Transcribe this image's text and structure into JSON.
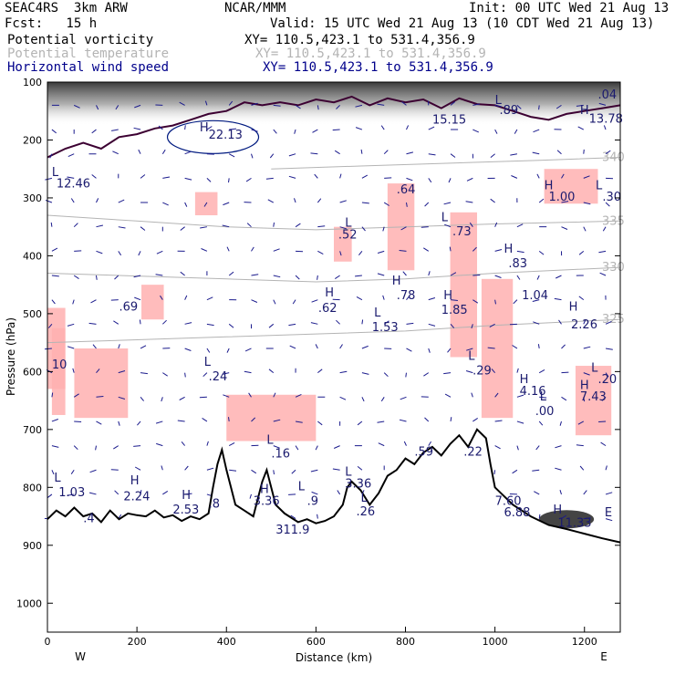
{
  "header": {
    "model": "SEAC4RS  3km ARW",
    "org": "NCAR/MMM",
    "init": "Init: 00 UTC Wed 21 Aug 13",
    "fcst": "Fcst:   15 h",
    "valid": "Valid: 15 UTC Wed 21 Aug 13 (10 CDT Wed 21 Aug 13)"
  },
  "fields": [
    {
      "name": "Potential vorticity",
      "xy": "XY= 110.5,423.1 to 531.4,356.9",
      "color": "#000000"
    },
    {
      "name": "Potential temperature",
      "xy": "XY= 110.5,423.1 to 531.4,356.9",
      "color": "#b4b4b4"
    },
    {
      "name": "Horizontal wind speed",
      "xy": "XY= 110.5,423.1 to 531.4,356.9",
      "color": "#00008b"
    }
  ],
  "colors": {
    "pv": "#ffb0b0",
    "pv_dark": "#3c0032",
    "terrain": "#000000",
    "theta": "#b4b4b4",
    "wind": "#1a1a8c",
    "label": "#1a1a6e"
  },
  "chart_data": {
    "type": "cross-section",
    "xlabel": "Distance (km)",
    "ylabel": "Pressure (hPa)",
    "xlim": [
      0,
      1280
    ],
    "ylim": [
      1050,
      100
    ],
    "x_ticks": [
      0,
      200,
      400,
      600,
      800,
      1000,
      1200
    ],
    "y_ticks": [
      100,
      200,
      300,
      400,
      500,
      600,
      700,
      800,
      900,
      1000
    ],
    "x_end_labels": {
      "left": "W",
      "right": "E"
    },
    "terrain": [
      [
        0,
        855
      ],
      [
        20,
        840
      ],
      [
        40,
        850
      ],
      [
        60,
        835
      ],
      [
        80,
        850
      ],
      [
        100,
        845
      ],
      [
        120,
        860
      ],
      [
        140,
        840
      ],
      [
        160,
        855
      ],
      [
        180,
        845
      ],
      [
        200,
        848
      ],
      [
        220,
        850
      ],
      [
        240,
        840
      ],
      [
        260,
        852
      ],
      [
        280,
        848
      ],
      [
        300,
        858
      ],
      [
        320,
        850
      ],
      [
        340,
        855
      ],
      [
        360,
        845
      ],
      [
        370,
        800
      ],
      [
        380,
        760
      ],
      [
        390,
        735
      ],
      [
        400,
        770
      ],
      [
        410,
        800
      ],
      [
        420,
        830
      ],
      [
        440,
        840
      ],
      [
        460,
        850
      ],
      [
        470,
        820
      ],
      [
        480,
        790
      ],
      [
        490,
        770
      ],
      [
        500,
        800
      ],
      [
        510,
        830
      ],
      [
        530,
        845
      ],
      [
        560,
        860
      ],
      [
        580,
        855
      ],
      [
        600,
        862
      ],
      [
        620,
        858
      ],
      [
        640,
        850
      ],
      [
        660,
        830
      ],
      [
        670,
        800
      ],
      [
        680,
        790
      ],
      [
        700,
        805
      ],
      [
        720,
        830
      ],
      [
        740,
        810
      ],
      [
        760,
        780
      ],
      [
        780,
        770
      ],
      [
        800,
        750
      ],
      [
        820,
        760
      ],
      [
        840,
        740
      ],
      [
        860,
        730
      ],
      [
        880,
        745
      ],
      [
        900,
        725
      ],
      [
        920,
        710
      ],
      [
        940,
        730
      ],
      [
        960,
        700
      ],
      [
        980,
        715
      ],
      [
        990,
        760
      ],
      [
        1000,
        800
      ],
      [
        1040,
        830
      ],
      [
        1080,
        850
      ],
      [
        1120,
        865
      ],
      [
        1160,
        872
      ],
      [
        1200,
        880
      ],
      [
        1240,
        888
      ],
      [
        1280,
        895
      ]
    ],
    "theta": [
      {
        "label": "335",
        "points": [
          [
            0,
            330
          ],
          [
            200,
            340
          ],
          [
            400,
            350
          ],
          [
            600,
            355
          ],
          [
            800,
            350
          ],
          [
            1000,
            345
          ],
          [
            1280,
            340
          ]
        ]
      },
      {
        "label": "330",
        "points": [
          [
            0,
            430
          ],
          [
            200,
            435
          ],
          [
            400,
            440
          ],
          [
            600,
            445
          ],
          [
            800,
            440
          ],
          [
            1000,
            430
          ],
          [
            1280,
            420
          ]
        ]
      },
      {
        "label": "325",
        "points": [
          [
            0,
            550
          ],
          [
            200,
            545
          ],
          [
            400,
            540
          ],
          [
            600,
            535
          ],
          [
            800,
            530
          ],
          [
            1000,
            520
          ],
          [
            1280,
            510
          ]
        ]
      },
      {
        "label": "340",
        "points": [
          [
            500,
            250
          ],
          [
            700,
            245
          ],
          [
            900,
            240
          ],
          [
            1100,
            235
          ],
          [
            1280,
            230
          ]
        ]
      }
    ],
    "labels": [
      {
        "t": "12.46",
        "x": 20,
        "y": 282
      },
      {
        "t": "L",
        "x": 10,
        "y": 262
      },
      {
        "t": "H",
        "x": 340,
        "y": 185
      },
      {
        "t": "22.13",
        "x": 360,
        "y": 198
      },
      {
        "t": "15.15",
        "x": 860,
        "y": 172
      },
      {
        "t": ".89",
        "x": 1010,
        "y": 155
      },
      {
        "t": ".64",
        "x": 780,
        "y": 292
      },
      {
        "t": "L",
        "x": 1000,
        "y": 138
      },
      {
        "t": "H",
        "x": 1190,
        "y": 155
      },
      {
        "t": "13.78",
        "x": 1210,
        "y": 170
      },
      {
        "t": "1.00",
        "x": 1120,
        "y": 305
      },
      {
        "t": "L",
        "x": 1225,
        "y": 285
      },
      {
        "t": ".30",
        "x": 1240,
        "y": 305
      },
      {
        "t": "H",
        "x": 1110,
        "y": 285
      },
      {
        "t": "L",
        "x": 665,
        "y": 350
      },
      {
        "t": ".52",
        "x": 650,
        "y": 370
      },
      {
        "t": "L",
        "x": 880,
        "y": 340
      },
      {
        "t": ".73",
        "x": 905,
        "y": 365
      },
      {
        "t": "H",
        "x": 1020,
        "y": 395
      },
      {
        "t": ".83",
        "x": 1030,
        "y": 420
      },
      {
        "t": "H",
        "x": 620,
        "y": 470
      },
      {
        "t": ".62",
        "x": 605,
        "y": 497
      },
      {
        "t": "H",
        "x": 770,
        "y": 450
      },
      {
        "t": ".78",
        "x": 780,
        "y": 475
      },
      {
        "t": "H",
        "x": 885,
        "y": 475
      },
      {
        "t": "1.85",
        "x": 880,
        "y": 500
      },
      {
        "t": "L",
        "x": 730,
        "y": 505
      },
      {
        "t": "1.53",
        "x": 725,
        "y": 530
      },
      {
        "t": "1.04",
        "x": 1060,
        "y": 475
      },
      {
        "t": "H",
        "x": 1165,
        "y": 495
      },
      {
        "t": "2.26",
        "x": 1170,
        "y": 525
      },
      {
        "t": ".69",
        "x": 160,
        "y": 495
      },
      {
        "t": "10",
        "x": 10,
        "y": 595
      },
      {
        "t": "L",
        "x": 350,
        "y": 590
      },
      {
        "t": ".24",
        "x": 360,
        "y": 615
      },
      {
        "t": "L",
        "x": 940,
        "y": 580
      },
      {
        "t": ".29",
        "x": 950,
        "y": 605
      },
      {
        "t": "H",
        "x": 1055,
        "y": 620
      },
      {
        "t": "4.16",
        "x": 1055,
        "y": 640
      },
      {
        "t": "L",
        "x": 1215,
        "y": 600
      },
      {
        "t": ".20",
        "x": 1230,
        "y": 620
      },
      {
        "t": "H",
        "x": 1190,
        "y": 630
      },
      {
        "t": "7.43",
        "x": 1190,
        "y": 650
      },
      {
        "t": "L",
        "x": 1100,
        "y": 650
      },
      {
        "t": ".00",
        "x": 1090,
        "y": 675
      },
      {
        "t": "L",
        "x": 490,
        "y": 725
      },
      {
        "t": ".16",
        "x": 500,
        "y": 748
      },
      {
        "t": ".59",
        "x": 820,
        "y": 745
      },
      {
        "t": ".22",
        "x": 930,
        "y": 745
      },
      {
        "t": "L",
        "x": 15,
        "y": 790
      },
      {
        "t": "1.03",
        "x": 25,
        "y": 815
      },
      {
        "t": "H",
        "x": 185,
        "y": 795
      },
      {
        "t": "2.24",
        "x": 170,
        "y": 822
      },
      {
        "t": "H",
        "x": 300,
        "y": 820
      },
      {
        "t": "2.53",
        "x": 280,
        "y": 845
      },
      {
        "t": ".8",
        "x": 360,
        "y": 835
      },
      {
        "t": "H",
        "x": 475,
        "y": 810
      },
      {
        "t": "3.36",
        "x": 460,
        "y": 830
      },
      {
        "t": "L",
        "x": 560,
        "y": 805
      },
      {
        "t": ".9",
        "x": 580,
        "y": 830
      },
      {
        "t": "L",
        "x": 665,
        "y": 780
      },
      {
        "t": "3.36",
        "x": 665,
        "y": 800
      },
      {
        "t": "L",
        "x": 700,
        "y": 825
      },
      {
        "t": ".26",
        "x": 690,
        "y": 848
      },
      {
        "t": ".4",
        "x": 80,
        "y": 860
      },
      {
        "t": "311.9",
        "x": 510,
        "y": 880
      },
      {
        "t": "7.60",
        "x": 1000,
        "y": 830
      },
      {
        "t": "6.88",
        "x": 1020,
        "y": 850
      },
      {
        "t": "H",
        "x": 1130,
        "y": 845
      },
      {
        "t": "11.33",
        "x": 1140,
        "y": 868
      },
      {
        "t": "E",
        "x": 1245,
        "y": 850
      },
      {
        "t": ".04",
        "x": 1230,
        "y": 128
      }
    ]
  }
}
